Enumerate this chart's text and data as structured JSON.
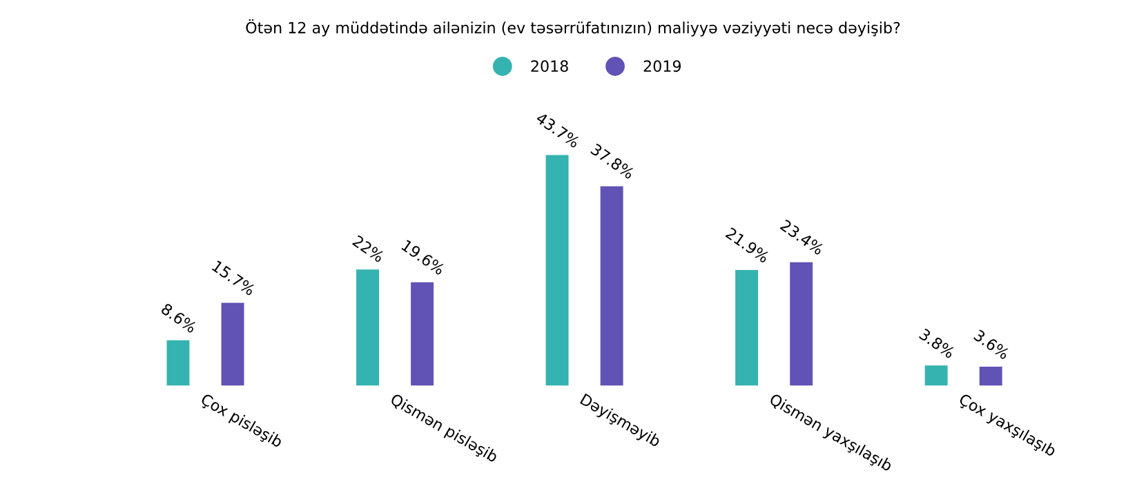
{
  "chart_data": {
    "type": "bar",
    "title": "Ötən 12 ay müddətində ailənizin (ev təsərrüfatınızın) maliyyə vəziyyəti necə dəyişib?",
    "categories": [
      "Çox pisləşib",
      "Qismən pisləşib",
      "Dəyişməyib",
      "Qismən yaxşılaşıb",
      "Çox yaxşılaşıb"
    ],
    "series": [
      {
        "name": "2018",
        "color": "#35b3b0",
        "values": [
          8.6,
          22,
          43.7,
          21.9,
          3.8
        ],
        "value_labels": [
          "8.6%",
          "22%",
          "43.7%",
          "21.9%",
          "3.8%"
        ]
      },
      {
        "name": "2019",
        "color": "#6152b5",
        "values": [
          15.7,
          19.6,
          37.8,
          23.4,
          3.6
        ],
        "value_labels": [
          "15.7%",
          "19.6%",
          "37.8%",
          "23.4%",
          "3.6%"
        ]
      }
    ],
    "legend": "top",
    "grid": false
  }
}
